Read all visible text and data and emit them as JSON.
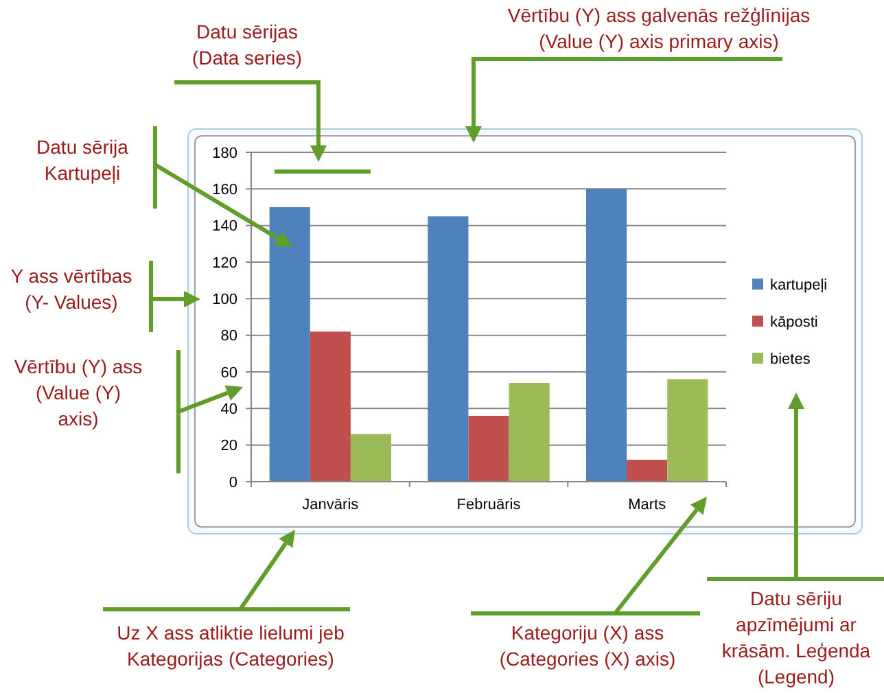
{
  "chart_data": {
    "type": "bar",
    "categories": [
      "Janvāris",
      "Februāris",
      "Marts"
    ],
    "series": [
      {
        "name": "kartupeļi",
        "color": "#4f81bd",
        "values": [
          150,
          145,
          160
        ]
      },
      {
        "name": "kāposti",
        "color": "#c0504d",
        "values": [
          82,
          36,
          12
        ]
      },
      {
        "name": "bietes",
        "color": "#9bbb59",
        "values": [
          26,
          54,
          56
        ]
      }
    ],
    "ylim": [
      0,
      180
    ],
    "yticks": [
      0,
      20,
      40,
      60,
      80,
      100,
      120,
      140,
      160,
      180
    ],
    "grid": "y",
    "legend": "right",
    "annotations": [
      "Datu sērijas (Data series)",
      "Vērtību (Y) ass galvenās režģlīnijas (Value (Y) axis primary axis)",
      "Datu sērija Kartupeļi",
      "Y ass vērtības (Y- Values)",
      "Vērtību (Y) ass (Value (Y) axis)",
      "Uz X ass atliktie lielumi jeb Kategorijas (Categories)",
      "Kategoriju (X) ass (Categories (X) axis)",
      "Datu sēriju apzīmējumi ar krāsām. Leģenda (Legend)"
    ]
  }
}
